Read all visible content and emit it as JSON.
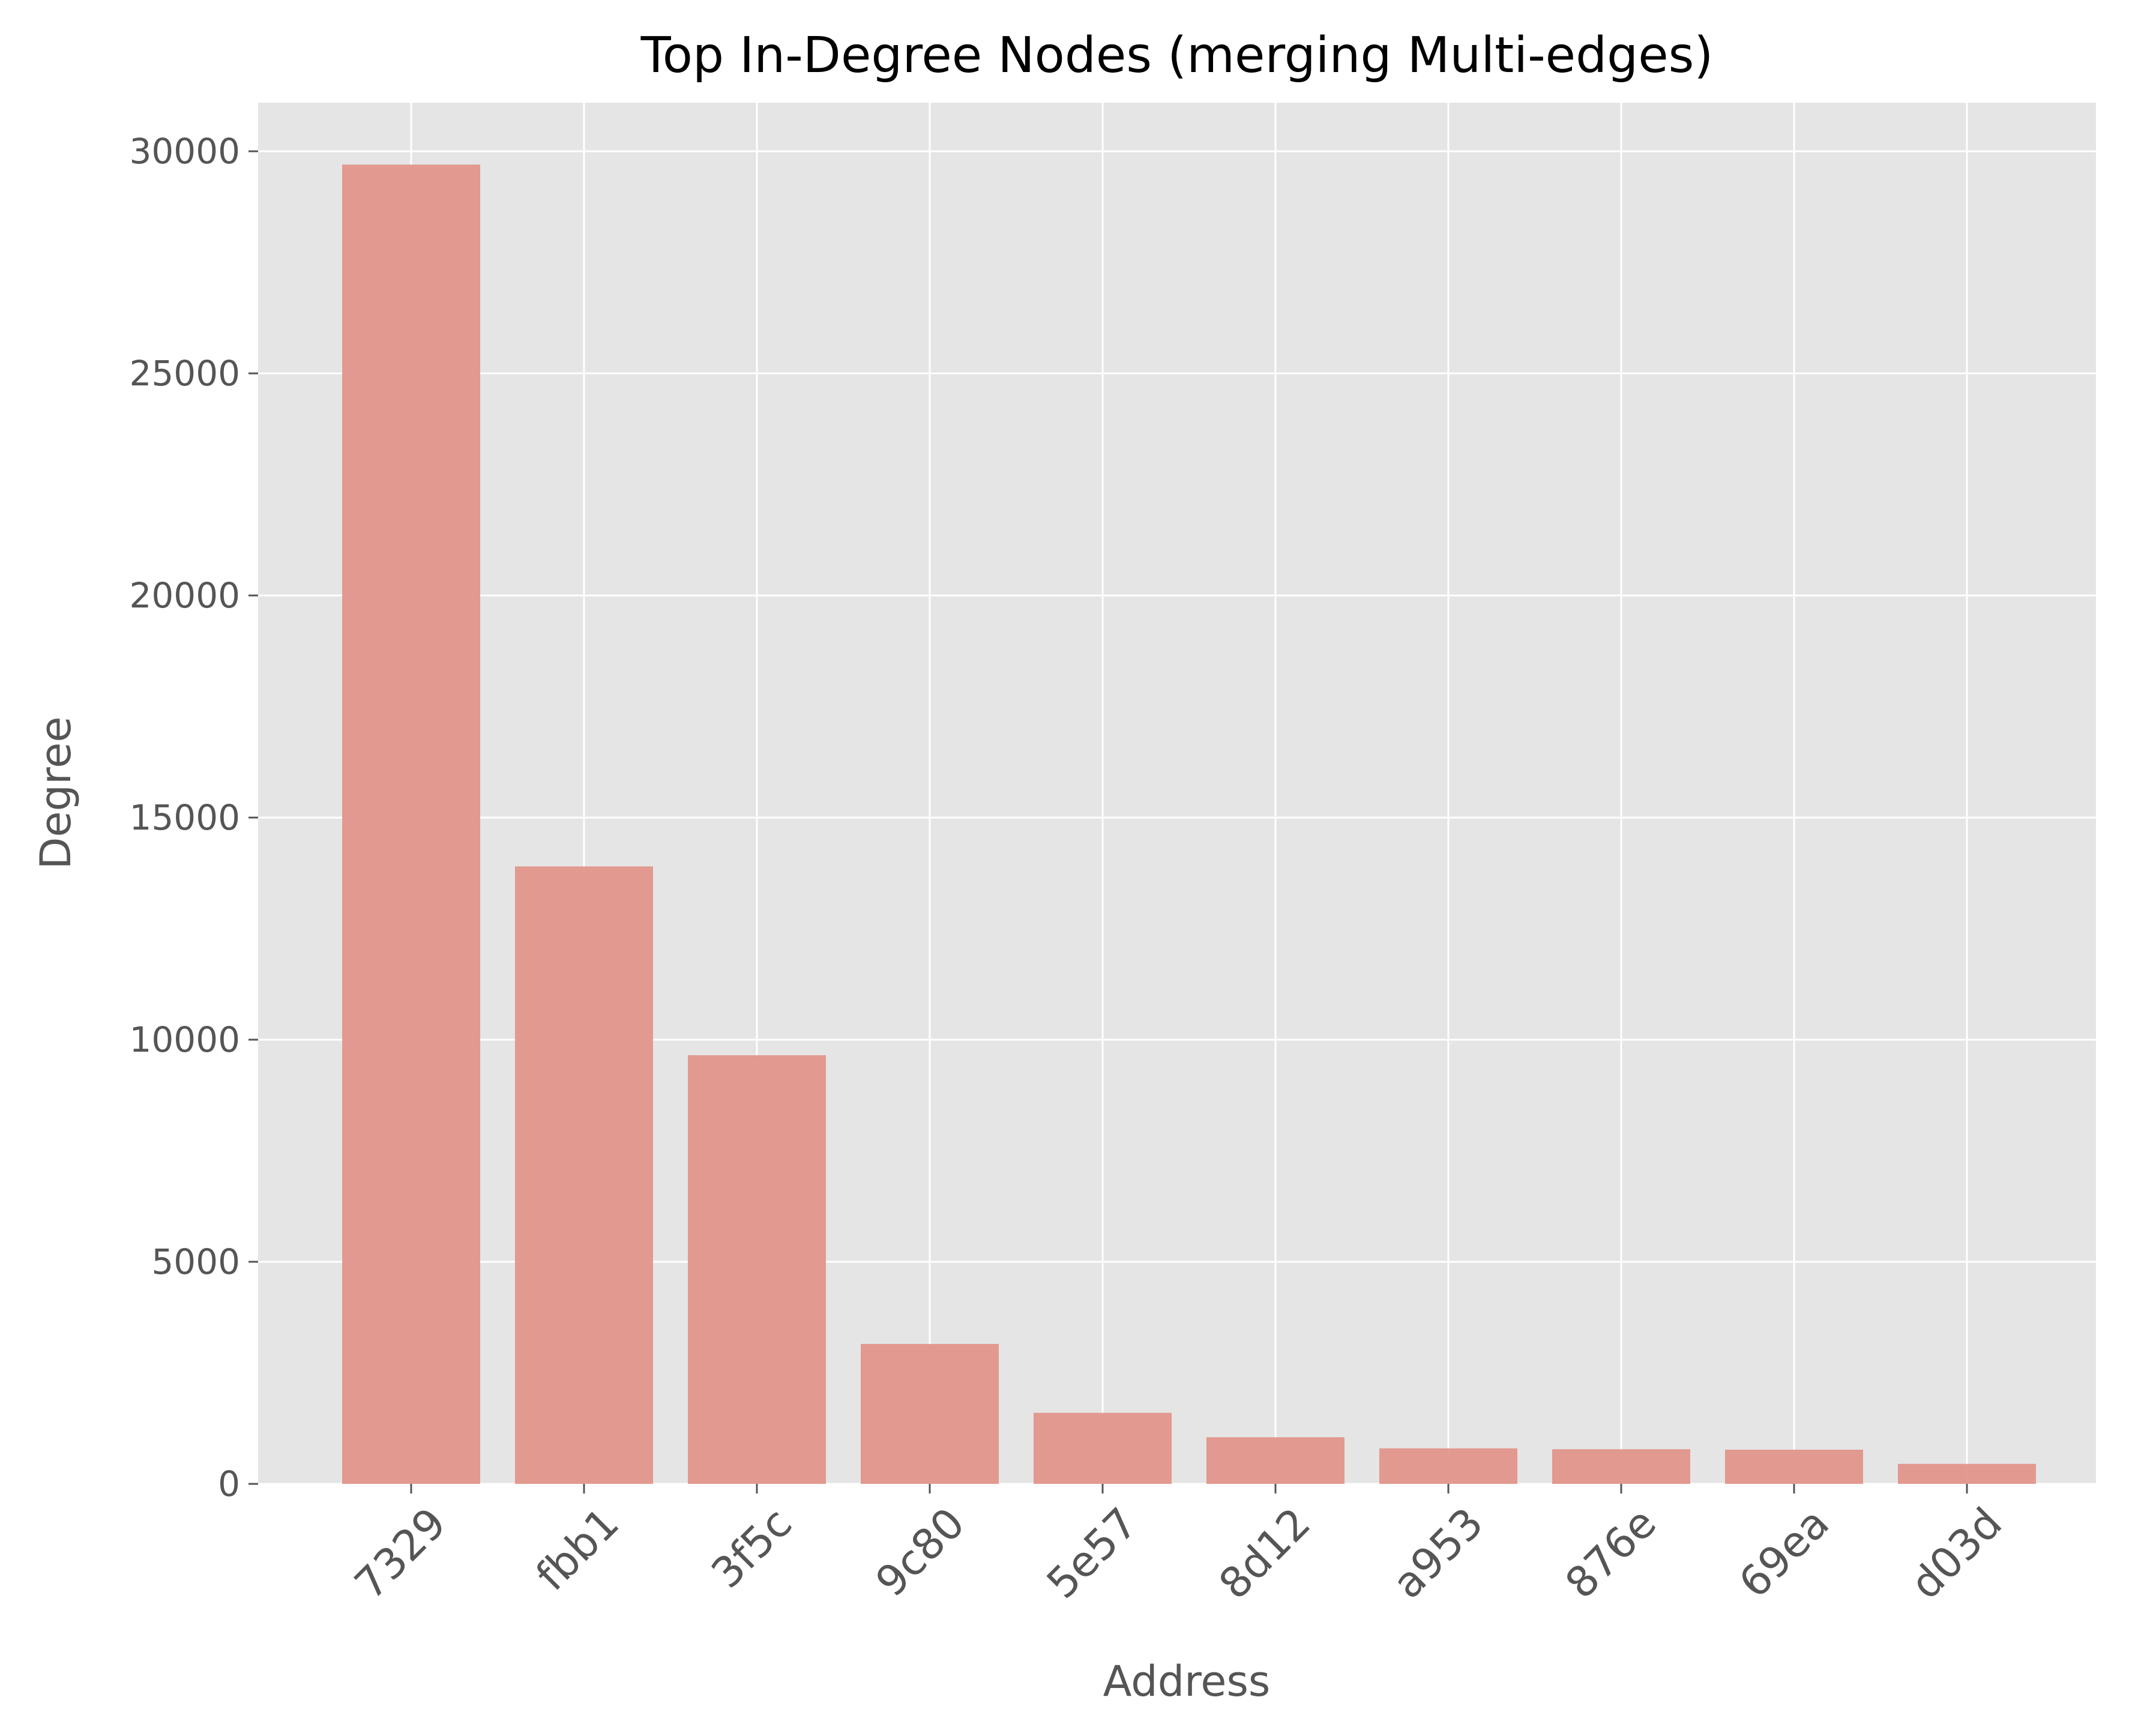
{
  "chart_data": {
    "type": "bar",
    "title": "Top In-Degree Nodes (merging Multi-edges)",
    "xlabel": "Address",
    "ylabel": "Degree",
    "categories": [
      "7329",
      "fbb1",
      "3f5c",
      "9c80",
      "5e57",
      "8d12",
      "a953",
      "876e",
      "69ea",
      "d03d"
    ],
    "values": [
      29700,
      13900,
      9650,
      3150,
      1600,
      1050,
      800,
      780,
      770,
      450
    ],
    "ylim": [
      0,
      31000
    ],
    "yticks": [
      0,
      5000,
      10000,
      15000,
      20000,
      25000,
      30000
    ],
    "grid": true,
    "bar_color": "#e2958a",
    "background_color": "#e5e5e5"
  }
}
